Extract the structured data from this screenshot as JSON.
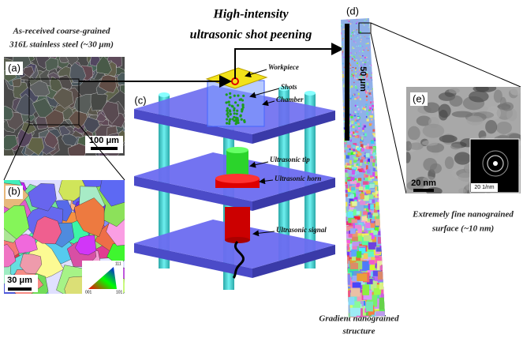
{
  "captions": {
    "coarse_grained": [
      "As-received coarse-grained",
      "316L stainless steel (~30 μm)"
    ],
    "process": [
      "High-intensity",
      "ultrasonic shot peening"
    ],
    "gradient": [
      "Gradient nanograined",
      "structure"
    ],
    "nanograined": [
      "Extremely fine nanograined",
      "surface (~10 nm)"
    ]
  },
  "panels": [
    {
      "label": "(a)",
      "scale_bar": "100 μm"
    },
    {
      "label": "(b)",
      "scale_bar": "30 μm",
      "ipf_corners": [
        "111",
        "001",
        "101"
      ]
    },
    {
      "label": "(c)",
      "parts": [
        "Workpiece",
        "Shots",
        "Chamber",
        "Ultrasonic tip",
        "Ultrasonic horn",
        "Ultrasonic signal"
      ]
    },
    {
      "label": "(d)",
      "scale_bar": "50 μm"
    },
    {
      "label": "(e)",
      "scale_bar": "20 nm",
      "inset_scale_bar": "20 1/nm"
    }
  ]
}
